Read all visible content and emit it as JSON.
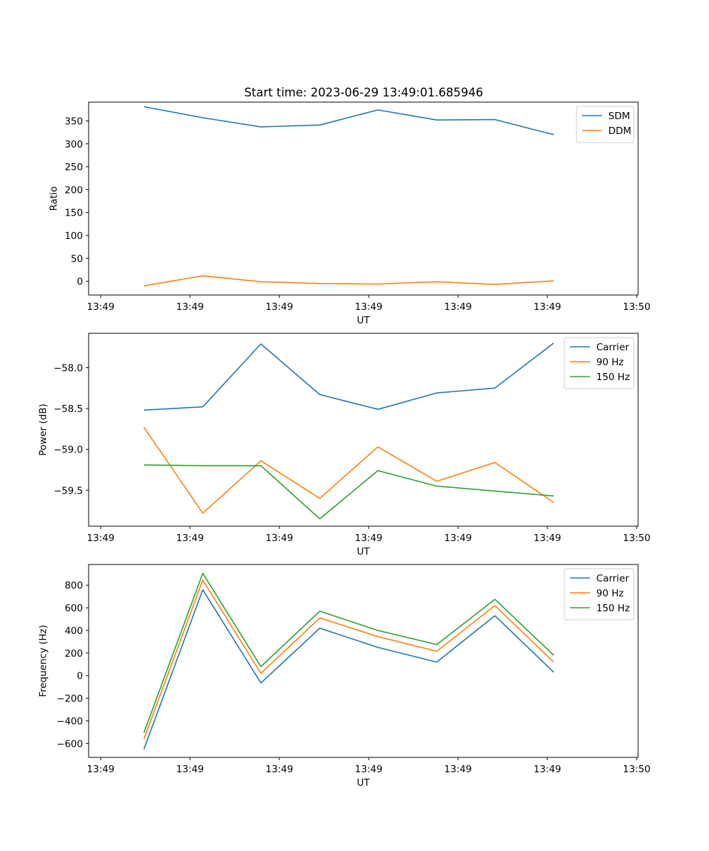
{
  "figure": {
    "title": "Start time: 2023-06-29 13:49:01.685946"
  },
  "chart_data": [
    {
      "type": "line",
      "title": "Start time: 2023-06-29 13:49:01.685946",
      "xlabel": "UT",
      "ylabel": "Ratio",
      "x_ticks": [
        "13:49",
        "13:49",
        "13:49",
        "13:49",
        "13:49",
        "13:49",
        "13:50"
      ],
      "y_ticks": [
        0,
        50,
        100,
        150,
        200,
        250,
        300,
        350
      ],
      "ylim": [
        -30,
        391
      ],
      "grid": false,
      "legend_position": "upper right",
      "series": [
        {
          "name": "SDM",
          "color": "#1f77b4",
          "values": [
            381,
            357,
            337,
            341,
            374,
            352,
            353,
            320
          ]
        },
        {
          "name": "DDM",
          "color": "#ff7f0e",
          "values": [
            -10,
            12,
            -1,
            -5,
            -6,
            -1,
            -7,
            1
          ]
        }
      ]
    },
    {
      "type": "line",
      "title": "",
      "xlabel": "UT",
      "ylabel": "Power (dB)",
      "x_ticks": [
        "13:49",
        "13:49",
        "13:49",
        "13:49",
        "13:49",
        "13:49",
        "13:50"
      ],
      "y_ticks": [
        -58.0,
        -58.5,
        -59.0,
        -59.5
      ],
      "ylim": [
        -59.94,
        -57.58
      ],
      "grid": false,
      "legend_position": "upper right",
      "series": [
        {
          "name": "Carrier",
          "color": "#1f77b4",
          "values": [
            -58.52,
            -58.48,
            -57.71,
            -58.33,
            -58.51,
            -58.31,
            -58.25,
            -57.7
          ]
        },
        {
          "name": "90 Hz",
          "color": "#ff7f0e",
          "values": [
            -58.73,
            -59.78,
            -59.14,
            -59.6,
            -58.97,
            -59.39,
            -59.16,
            -59.65
          ]
        },
        {
          "name": "150 Hz",
          "color": "#2ca02c",
          "values": [
            -59.19,
            -59.2,
            -59.2,
            -59.85,
            -59.26,
            -59.45,
            -59.51,
            -59.57
          ]
        }
      ]
    },
    {
      "type": "line",
      "title": "",
      "xlabel": "UT",
      "ylabel": "Frequency (Hz)",
      "x_ticks": [
        "13:49",
        "13:49",
        "13:49",
        "13:49",
        "13:49",
        "13:49",
        "13:50"
      ],
      "y_ticks": [
        -600,
        -400,
        -200,
        0,
        200,
        400,
        600,
        800
      ],
      "ylim": [
        -723,
        983
      ],
      "grid": false,
      "legend_position": "upper right",
      "series": [
        {
          "name": "Carrier",
          "color": "#1f77b4",
          "values": [
            -650,
            760,
            -65,
            420,
            250,
            120,
            530,
            30
          ]
        },
        {
          "name": "90 Hz",
          "color": "#ff7f0e",
          "values": [
            -560,
            845,
            20,
            510,
            345,
            215,
            620,
            120
          ]
        },
        {
          "name": "150 Hz",
          "color": "#2ca02c",
          "values": [
            -505,
            905,
            80,
            570,
            400,
            275,
            675,
            180
          ]
        }
      ]
    }
  ]
}
